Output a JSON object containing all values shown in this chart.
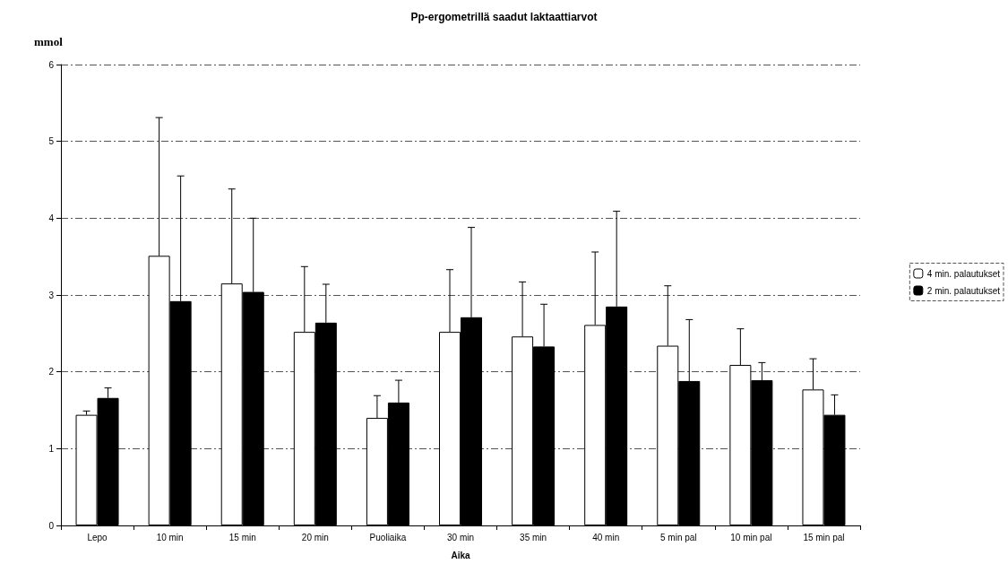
{
  "chart_data": {
    "type": "bar",
    "title": "Pp-ergometrillä saadut laktaattiarvot",
    "xlabel": "Aika",
    "ylabel": "mmol",
    "categories": [
      "Lepo",
      "10 min",
      "15 min",
      "20 min",
      "Puoliaika",
      "30 min",
      "35 min",
      "40 min",
      "5 min pal",
      "10 min pal",
      "15 min pal"
    ],
    "series": [
      {
        "name": "4 min. palautukset",
        "color": "#ffffff",
        "values": [
          1.44,
          3.51,
          3.15,
          2.52,
          1.4,
          2.52,
          2.46,
          2.61,
          2.34,
          2.09,
          1.77
        ],
        "errors": [
          [
            1.44,
            1.49
          ],
          [
            3.51,
            5.31
          ],
          [
            3.15,
            4.38
          ],
          [
            2.52,
            3.37
          ],
          [
            1.4,
            1.69
          ],
          [
            2.52,
            3.33
          ],
          [
            2.46,
            3.17
          ],
          [
            2.61,
            3.56
          ],
          [
            2.34,
            3.12
          ],
          [
            2.09,
            2.56
          ],
          [
            1.77,
            2.17
          ]
        ]
      },
      {
        "name": "2 min. palautukset",
        "color": "#000000",
        "values": [
          1.66,
          2.92,
          3.04,
          2.64,
          1.6,
          2.71,
          2.33,
          2.85,
          1.88,
          1.89,
          1.44
        ],
        "errors": [
          [
            1.66,
            1.79
          ],
          [
            2.92,
            4.55
          ],
          [
            3.04,
            4.0
          ],
          [
            2.64,
            3.14
          ],
          [
            1.6,
            1.89
          ],
          [
            2.71,
            3.88
          ],
          [
            2.33,
            2.88
          ],
          [
            2.85,
            4.09
          ],
          [
            1.88,
            2.68
          ],
          [
            1.89,
            2.12
          ],
          [
            1.44,
            1.7
          ]
        ]
      }
    ],
    "ylim": [
      0,
      6
    ],
    "yticks": [
      0,
      1,
      2,
      3,
      4,
      5,
      6
    ],
    "grid": "y",
    "legend": "right"
  }
}
